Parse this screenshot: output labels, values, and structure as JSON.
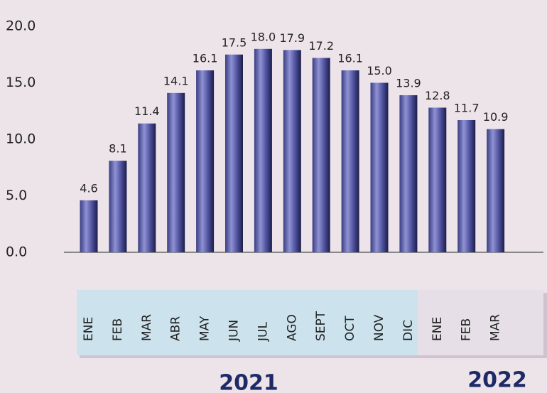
{
  "chart_data": {
    "type": "bar",
    "categories": [
      "ENE",
      "FEB",
      "MAR",
      "ABR",
      "MAY",
      "JUN",
      "JUL",
      "AGO",
      "SEPT",
      "OCT",
      "NOV",
      "DIC",
      "ENE",
      "FEB",
      "MAR"
    ],
    "values": [
      4.6,
      8.1,
      11.4,
      14.1,
      16.1,
      17.5,
      18.0,
      17.9,
      17.2,
      16.1,
      15.0,
      13.9,
      12.8,
      11.7,
      10.9
    ],
    "value_labels": [
      "4.6",
      "8.1",
      "11.4",
      "14.1",
      "16.1",
      "17.5",
      "18.0",
      "17.9",
      "17.2",
      "16.1",
      "15.0",
      "13.9",
      "12.8",
      "11.7",
      "10.9"
    ],
    "color": "#5a5ea8",
    "ylim": [
      0,
      20
    ],
    "yticks": [
      {
        "value": 0,
        "label": "0.0"
      },
      {
        "value": 5,
        "label": "5.0"
      },
      {
        "value": 10,
        "label": "10.0"
      },
      {
        "value": 15,
        "label": "15.0"
      },
      {
        "value": 20,
        "label": "20.0"
      }
    ],
    "annotations": [
      "2021",
      "2022"
    ]
  }
}
